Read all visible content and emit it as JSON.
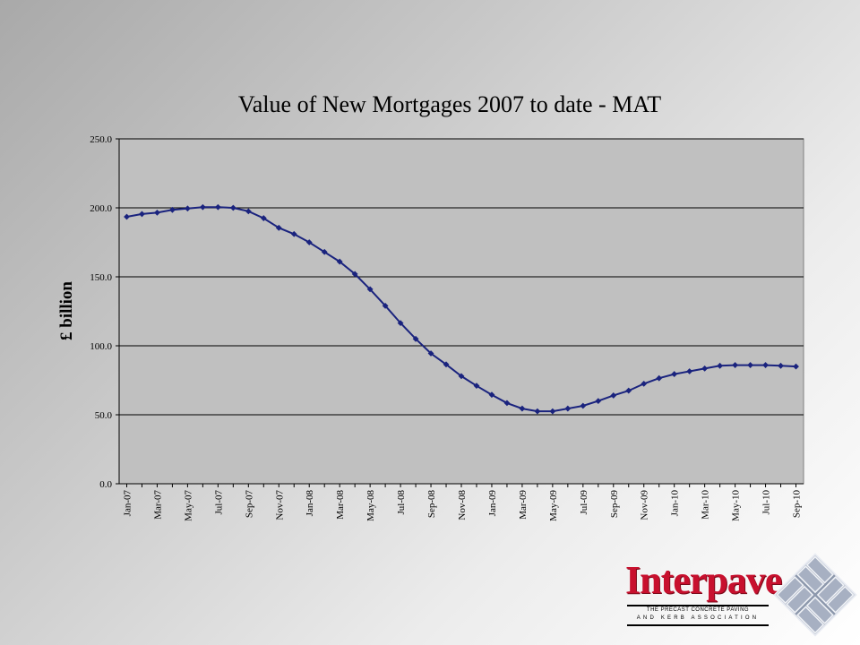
{
  "chart_data": {
    "type": "line",
    "title": "Value of New Mortgages 2007 to date - MAT",
    "ylabel": "£ billion",
    "xlabel": "",
    "ylim": [
      0,
      250
    ],
    "yticks": [
      "0.0",
      "50.0",
      "100.0",
      "150.0",
      "200.0",
      "250.0"
    ],
    "grid": true,
    "x": [
      "Jan-07",
      "Feb-07",
      "Mar-07",
      "Apr-07",
      "May-07",
      "Jun-07",
      "Jul-07",
      "Aug-07",
      "Sep-07",
      "Oct-07",
      "Nov-07",
      "Dec-07",
      "Jan-08",
      "Feb-08",
      "Mar-08",
      "Apr-08",
      "May-08",
      "Jun-08",
      "Jul-08",
      "Aug-08",
      "Sep-08",
      "Oct-08",
      "Nov-08",
      "Dec-08",
      "Jan-09",
      "Feb-09",
      "Mar-09",
      "Apr-09",
      "May-09",
      "Jun-09",
      "Jul-09",
      "Aug-09",
      "Sep-09",
      "Oct-09",
      "Nov-09",
      "Dec-09",
      "Jan-10",
      "Feb-10",
      "Mar-10",
      "Apr-10",
      "May-10",
      "Jun-10",
      "Jul-10",
      "Aug-10",
      "Sep-10"
    ],
    "xticks": [
      "Jan-07",
      "Mar-07",
      "May-07",
      "Jul-07",
      "Sep-07",
      "Nov-07",
      "Jan-08",
      "Mar-08",
      "May-08",
      "Jul-08",
      "Sep-08",
      "Nov-08",
      "Jan-09",
      "Mar-09",
      "May-09",
      "Jul-09",
      "Sep-09",
      "Nov-09",
      "Jan-10",
      "Mar-10",
      "May-10",
      "Jul-10",
      "Sep-10"
    ],
    "series": [
      {
        "color": "#1a237e",
        "values": [
          193.5,
          195.5,
          196.5,
          198.5,
          199.5,
          200.5,
          200.5,
          200.0,
          197.5,
          192.5,
          185.5,
          181.0,
          175.0,
          168.0,
          161.0,
          152.0,
          141.0,
          129.0,
          116.5,
          105.0,
          94.5,
          86.5,
          78.0,
          71.0,
          64.5,
          58.5,
          54.5,
          52.5,
          52.5,
          54.5,
          56.5,
          60.0,
          64.0,
          67.5,
          72.5,
          76.5,
          79.5,
          81.5,
          83.5,
          85.5,
          86.0,
          86.0,
          86.0,
          85.5,
          85.0
        ]
      }
    ]
  },
  "logo": {
    "name": "Interpave",
    "tagline_1": "THE PRECAST CONCRETE PAVING",
    "tagline_2": "AND KERB ASSOCIATION"
  }
}
